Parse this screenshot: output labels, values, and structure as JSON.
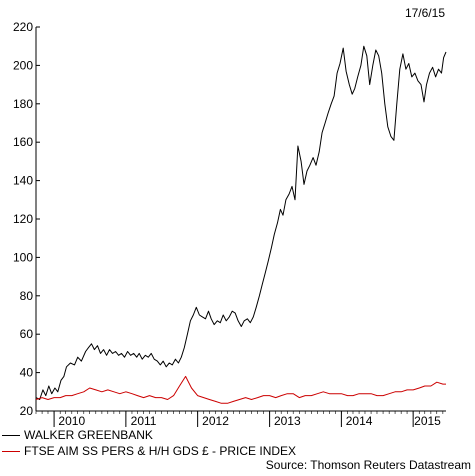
{
  "date_stamp": "17/6/15",
  "source": "Source: Thomson Reuters Datastream",
  "chart_data": {
    "type": "line",
    "title": "",
    "xlabel": "",
    "ylabel": "",
    "ylim": [
      20,
      220
    ],
    "yticks": [
      20,
      40,
      60,
      80,
      100,
      120,
      140,
      160,
      180,
      200,
      220
    ],
    "xlim": [
      "2009-10-01",
      "2015-06-17"
    ],
    "year_labels": [
      {
        "label": "2010",
        "mid": "2010-04-01"
      },
      {
        "label": "2011",
        "mid": "2011-04-01"
      },
      {
        "label": "2012",
        "mid": "2012-04-01"
      },
      {
        "label": "2013",
        "mid": "2013-04-01"
      },
      {
        "label": "2014",
        "mid": "2014-04-01"
      },
      {
        "label": "2015",
        "mid": "2015-03-15"
      }
    ],
    "year_ticks": [
      "2010-01-01",
      "2011-01-01",
      "2012-01-01",
      "2013-01-01",
      "2014-01-01",
      "2015-01-01"
    ],
    "grid": false,
    "legend_position": "bottom-left",
    "series": [
      {
        "name": "WALKER GREENBANK",
        "color": "#000000",
        "points": [
          [
            "2009-10-01",
            27
          ],
          [
            "2009-10-20",
            26
          ],
          [
            "2009-11-05",
            31
          ],
          [
            "2009-11-20",
            28
          ],
          [
            "2009-12-05",
            33
          ],
          [
            "2009-12-20",
            29
          ],
          [
            "2010-01-05",
            32
          ],
          [
            "2010-01-20",
            30
          ],
          [
            "2010-02-05",
            36
          ],
          [
            "2010-02-20",
            38
          ],
          [
            "2010-03-05",
            43
          ],
          [
            "2010-03-25",
            45
          ],
          [
            "2010-04-15",
            44
          ],
          [
            "2010-05-01",
            48
          ],
          [
            "2010-05-20",
            46
          ],
          [
            "2010-06-10",
            51
          ],
          [
            "2010-06-25",
            53
          ],
          [
            "2010-07-10",
            55
          ],
          [
            "2010-07-25",
            52
          ],
          [
            "2010-08-10",
            54
          ],
          [
            "2010-08-25",
            50
          ],
          [
            "2010-09-10",
            52
          ],
          [
            "2010-09-25",
            49
          ],
          [
            "2010-10-10",
            52
          ],
          [
            "2010-10-25",
            50
          ],
          [
            "2010-11-10",
            51
          ],
          [
            "2010-11-25",
            49
          ],
          [
            "2010-12-10",
            50
          ],
          [
            "2010-12-25",
            48
          ],
          [
            "2011-01-10",
            51
          ],
          [
            "2011-01-25",
            49
          ],
          [
            "2011-02-10",
            50
          ],
          [
            "2011-02-25",
            48
          ],
          [
            "2011-03-10",
            50
          ],
          [
            "2011-03-25",
            47
          ],
          [
            "2011-04-10",
            49
          ],
          [
            "2011-04-25",
            48
          ],
          [
            "2011-05-10",
            50
          ],
          [
            "2011-05-25",
            47
          ],
          [
            "2011-06-10",
            46
          ],
          [
            "2011-06-25",
            44
          ],
          [
            "2011-07-10",
            46
          ],
          [
            "2011-07-25",
            43
          ],
          [
            "2011-08-10",
            45
          ],
          [
            "2011-08-25",
            44
          ],
          [
            "2011-09-10",
            47
          ],
          [
            "2011-09-25",
            45
          ],
          [
            "2011-10-10",
            48
          ],
          [
            "2011-10-25",
            53
          ],
          [
            "2011-11-10",
            60
          ],
          [
            "2011-11-25",
            67
          ],
          [
            "2011-12-10",
            70
          ],
          [
            "2011-12-25",
            74
          ],
          [
            "2012-01-10",
            70
          ],
          [
            "2012-01-25",
            69
          ],
          [
            "2012-02-10",
            68
          ],
          [
            "2012-02-25",
            72
          ],
          [
            "2012-03-10",
            68
          ],
          [
            "2012-03-25",
            65
          ],
          [
            "2012-04-10",
            67
          ],
          [
            "2012-04-25",
            66
          ],
          [
            "2012-05-10",
            70
          ],
          [
            "2012-05-25",
            67
          ],
          [
            "2012-06-10",
            69
          ],
          [
            "2012-06-25",
            72
          ],
          [
            "2012-07-10",
            71
          ],
          [
            "2012-07-25",
            67
          ],
          [
            "2012-08-10",
            64
          ],
          [
            "2012-08-25",
            67
          ],
          [
            "2012-09-10",
            68
          ],
          [
            "2012-09-25",
            66
          ],
          [
            "2012-10-10",
            69
          ],
          [
            "2012-10-25",
            74
          ],
          [
            "2012-11-10",
            80
          ],
          [
            "2012-11-25",
            86
          ],
          [
            "2012-12-10",
            92
          ],
          [
            "2012-12-25",
            98
          ],
          [
            "2013-01-10",
            105
          ],
          [
            "2013-01-25",
            112
          ],
          [
            "2013-02-10",
            118
          ],
          [
            "2013-02-25",
            125
          ],
          [
            "2013-03-10",
            122
          ],
          [
            "2013-03-25",
            130
          ],
          [
            "2013-04-10",
            133
          ],
          [
            "2013-04-25",
            137
          ],
          [
            "2013-05-10",
            130
          ],
          [
            "2013-05-25",
            158
          ],
          [
            "2013-06-10",
            150
          ],
          [
            "2013-06-25",
            138
          ],
          [
            "2013-07-10",
            145
          ],
          [
            "2013-07-25",
            148
          ],
          [
            "2013-08-10",
            152
          ],
          [
            "2013-08-25",
            148
          ],
          [
            "2013-09-10",
            155
          ],
          [
            "2013-09-25",
            165
          ],
          [
            "2013-10-10",
            170
          ],
          [
            "2013-10-25",
            175
          ],
          [
            "2013-11-10",
            180
          ],
          [
            "2013-11-25",
            184
          ],
          [
            "2013-12-10",
            196
          ],
          [
            "2013-12-25",
            201
          ],
          [
            "2014-01-10",
            209
          ],
          [
            "2014-01-25",
            197
          ],
          [
            "2014-02-10",
            190
          ],
          [
            "2014-02-25",
            185
          ],
          [
            "2014-03-10",
            188
          ],
          [
            "2014-03-25",
            194
          ],
          [
            "2014-04-10",
            200
          ],
          [
            "2014-04-25",
            210
          ],
          [
            "2014-05-10",
            205
          ],
          [
            "2014-05-25",
            190
          ],
          [
            "2014-06-10",
            200
          ],
          [
            "2014-06-25",
            208
          ],
          [
            "2014-07-10",
            205
          ],
          [
            "2014-07-25",
            196
          ],
          [
            "2014-08-10",
            180
          ],
          [
            "2014-08-25",
            168
          ],
          [
            "2014-09-10",
            163
          ],
          [
            "2014-09-25",
            161
          ],
          [
            "2014-10-10",
            180
          ],
          [
            "2014-10-25",
            198
          ],
          [
            "2014-11-10",
            206
          ],
          [
            "2014-11-25",
            198
          ],
          [
            "2014-12-10",
            201
          ],
          [
            "2014-12-25",
            194
          ],
          [
            "2015-01-10",
            196
          ],
          [
            "2015-01-25",
            192
          ],
          [
            "2015-02-10",
            190
          ],
          [
            "2015-02-25",
            181
          ],
          [
            "2015-03-10",
            190
          ],
          [
            "2015-03-25",
            196
          ],
          [
            "2015-04-10",
            199
          ],
          [
            "2015-04-25",
            194
          ],
          [
            "2015-05-10",
            198
          ],
          [
            "2015-05-25",
            196
          ],
          [
            "2015-06-05",
            204
          ],
          [
            "2015-06-17",
            207
          ]
        ]
      },
      {
        "name": "FTSE AIM SS PERS & H/H GDS £ - PRICE INDEX",
        "color": "#cc0000",
        "points": [
          [
            "2009-10-01",
            26
          ],
          [
            "2009-11-01",
            27
          ],
          [
            "2009-12-01",
            26
          ],
          [
            "2010-01-01",
            27
          ],
          [
            "2010-02-01",
            27
          ],
          [
            "2010-03-01",
            28
          ],
          [
            "2010-04-01",
            28
          ],
          [
            "2010-05-01",
            29
          ],
          [
            "2010-06-01",
            30
          ],
          [
            "2010-07-01",
            32
          ],
          [
            "2010-08-01",
            31
          ],
          [
            "2010-09-01",
            30
          ],
          [
            "2010-10-01",
            31
          ],
          [
            "2010-11-01",
            30
          ],
          [
            "2010-12-01",
            29
          ],
          [
            "2011-01-01",
            30
          ],
          [
            "2011-02-01",
            29
          ],
          [
            "2011-03-01",
            28
          ],
          [
            "2011-04-01",
            27
          ],
          [
            "2011-05-01",
            28
          ],
          [
            "2011-06-01",
            27
          ],
          [
            "2011-07-01",
            27
          ],
          [
            "2011-08-01",
            26
          ],
          [
            "2011-09-01",
            28
          ],
          [
            "2011-10-01",
            33
          ],
          [
            "2011-11-01",
            38
          ],
          [
            "2011-12-01",
            32
          ],
          [
            "2012-01-01",
            28
          ],
          [
            "2012-02-01",
            27
          ],
          [
            "2012-03-01",
            26
          ],
          [
            "2012-04-01",
            25
          ],
          [
            "2012-05-01",
            24
          ],
          [
            "2012-06-01",
            24
          ],
          [
            "2012-07-01",
            25
          ],
          [
            "2012-08-01",
            26
          ],
          [
            "2012-09-01",
            27
          ],
          [
            "2012-10-01",
            26
          ],
          [
            "2012-11-01",
            27
          ],
          [
            "2012-12-01",
            28
          ],
          [
            "2013-01-01",
            28
          ],
          [
            "2013-02-01",
            27
          ],
          [
            "2013-03-01",
            28
          ],
          [
            "2013-04-01",
            29
          ],
          [
            "2013-05-01",
            29
          ],
          [
            "2013-06-01",
            27
          ],
          [
            "2013-07-01",
            28
          ],
          [
            "2013-08-01",
            28
          ],
          [
            "2013-09-01",
            29
          ],
          [
            "2013-10-01",
            30
          ],
          [
            "2013-11-01",
            29
          ],
          [
            "2013-12-01",
            29
          ],
          [
            "2014-01-01",
            29
          ],
          [
            "2014-02-01",
            28
          ],
          [
            "2014-03-01",
            28
          ],
          [
            "2014-04-01",
            29
          ],
          [
            "2014-05-01",
            29
          ],
          [
            "2014-06-01",
            29
          ],
          [
            "2014-07-01",
            28
          ],
          [
            "2014-08-01",
            28
          ],
          [
            "2014-09-01",
            29
          ],
          [
            "2014-10-01",
            30
          ],
          [
            "2014-11-01",
            30
          ],
          [
            "2014-12-01",
            31
          ],
          [
            "2015-01-01",
            31
          ],
          [
            "2015-02-01",
            32
          ],
          [
            "2015-03-01",
            33
          ],
          [
            "2015-04-01",
            33
          ],
          [
            "2015-05-01",
            35
          ],
          [
            "2015-06-01",
            34
          ],
          [
            "2015-06-17",
            34
          ]
        ]
      }
    ]
  }
}
